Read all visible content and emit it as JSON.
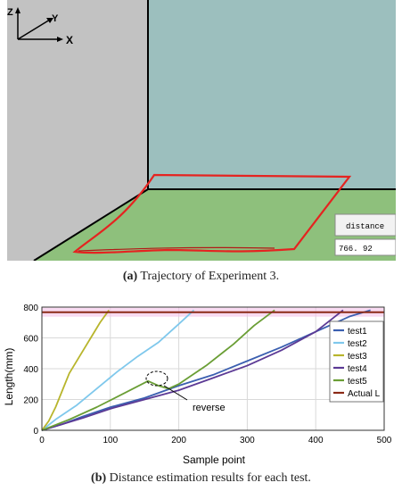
{
  "figure_a": {
    "caption_label": "(a)",
    "caption_text": " Trajectory of Experiment 3.",
    "axis_z": "Z",
    "axis_y": "Y",
    "axis_x": "X",
    "distance_label": "distance",
    "distance_value": "766. 92",
    "colors": {
      "left_wall": "#c2c2c2",
      "back_wall": "#9cbfbe",
      "floor": "#8ec07c",
      "trajectory": "#e52320"
    }
  },
  "figure_b": {
    "caption_label": "(b)",
    "caption_text": " Distance estimation results for each test.",
    "annotation": "reverse"
  },
  "chart_data": {
    "type": "line",
    "xlabel": "Sample point",
    "ylabel": "Length(mm)",
    "xlim": [
      0,
      500
    ],
    "ylim": [
      0,
      800
    ],
    "xticks": [
      "0",
      "100",
      "200",
      "300",
      "400",
      "500"
    ],
    "yticks": [
      "0",
      "200",
      "400",
      "600",
      "800"
    ],
    "grid": true,
    "legend": "right",
    "series": [
      {
        "name": "test1",
        "color": "#3b5fb0",
        "x": [
          0,
          30,
          60,
          100,
          150,
          200,
          250,
          300,
          350,
          400,
          450,
          480
        ],
        "y": [
          0,
          40,
          90,
          150,
          210,
          290,
          360,
          450,
          540,
          640,
          740,
          780
        ]
      },
      {
        "name": "test2",
        "color": "#7fc8ec",
        "x": [
          0,
          20,
          50,
          80,
          110,
          140,
          170,
          200,
          222
        ],
        "y": [
          0,
          70,
          160,
          270,
          380,
          480,
          570,
          690,
          780
        ]
      },
      {
        "name": "test3",
        "color": "#b8b52c",
        "x": [
          0,
          10,
          20,
          30,
          40,
          55,
          70,
          85,
          98
        ],
        "y": [
          0,
          60,
          150,
          260,
          370,
          480,
          590,
          700,
          780
        ]
      },
      {
        "name": "test4",
        "color": "#5c3a95",
        "x": [
          0,
          30,
          60,
          100,
          150,
          200,
          250,
          300,
          350,
          400,
          440
        ],
        "y": [
          0,
          40,
          80,
          140,
          200,
          260,
          340,
          420,
          520,
          640,
          780
        ]
      },
      {
        "name": "test5",
        "color": "#6a9e35",
        "x": [
          0,
          40,
          80,
          120,
          155,
          170,
          185,
          200,
          240,
          280,
          310,
          340
        ],
        "y": [
          0,
          70,
          150,
          240,
          320,
          290,
          270,
          300,
          420,
          560,
          680,
          780
        ]
      },
      {
        "name": "Actual L",
        "color": "#8b2a17",
        "x": [
          0,
          500
        ],
        "y": [
          766.92,
          766.92
        ]
      }
    ]
  }
}
